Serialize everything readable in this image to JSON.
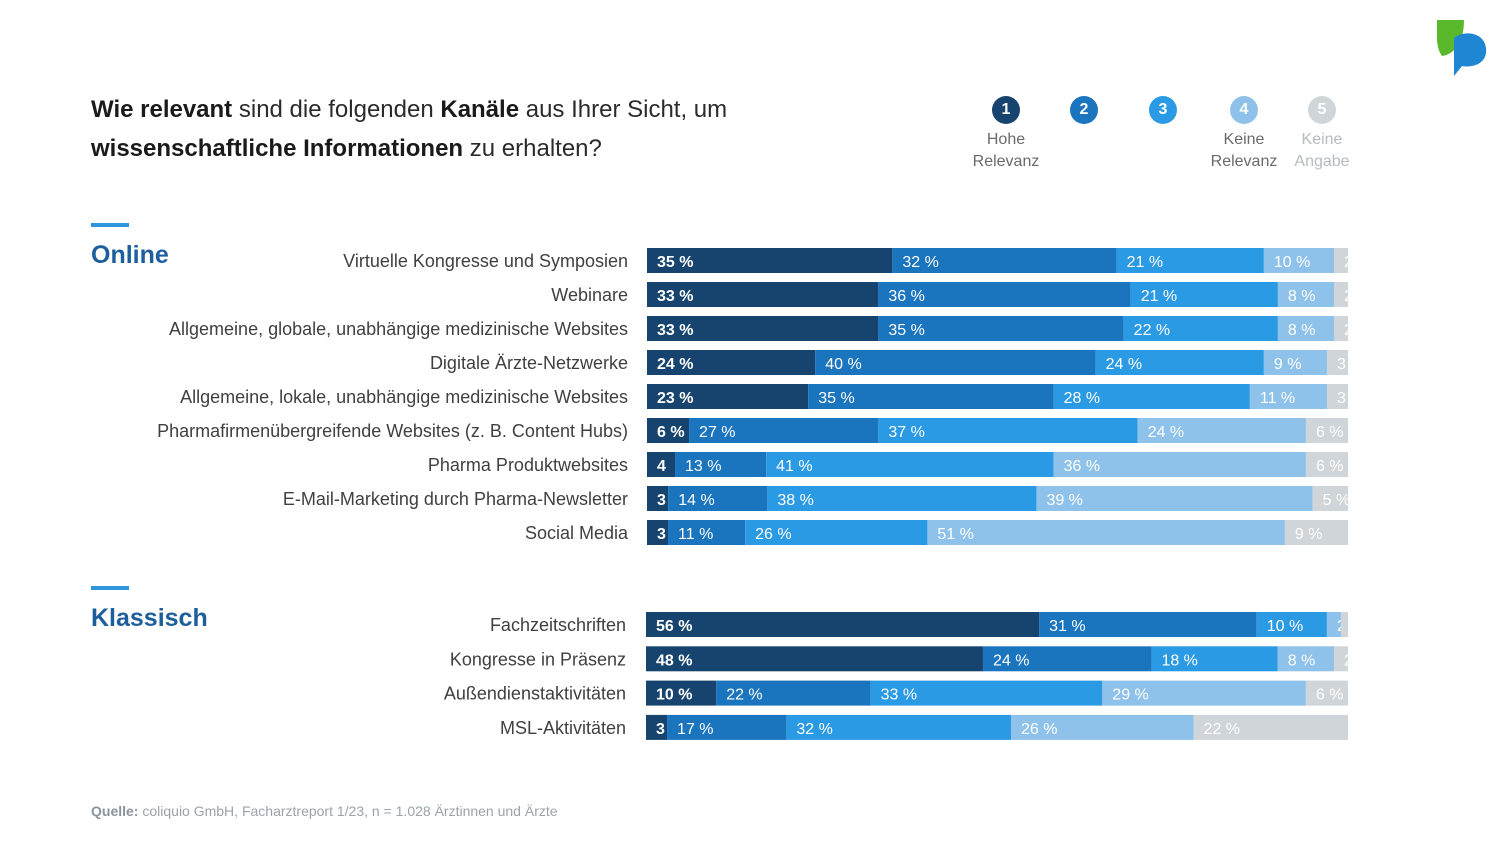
{
  "title": {
    "part1_bold": "Wie relevant",
    "part2": " sind die folgenden ",
    "part3_bold": "Kanäle",
    "part4": " aus Ihrer Sicht, um",
    "part5_bold": "wissenschaftliche Informationen",
    "part6": " zu erhalten?"
  },
  "legend": [
    {
      "num": "1",
      "label1": "Hohe",
      "label2": "Relevanz",
      "color": "#17446e"
    },
    {
      "num": "2",
      "label1": "",
      "label2": "",
      "color": "#1a74be"
    },
    {
      "num": "3",
      "label1": "",
      "label2": "",
      "color": "#2b9ae4"
    },
    {
      "num": "4",
      "label1": "Keine",
      "label2": "Relevanz",
      "color": "#8ec2ea"
    },
    {
      "num": "5",
      "label1": "Keine",
      "label2": "Angabe",
      "color": "#d0d5d9"
    }
  ],
  "sections": {
    "online": "Online",
    "klassisch": "Klassisch"
  },
  "chart_data": {
    "type": "bar",
    "orientation": "horizontal-stacked-100",
    "series_names": [
      "1",
      "2",
      "3",
      "4",
      "5"
    ],
    "colors": [
      "#17446e",
      "#1a74be",
      "#2b9ae4",
      "#8ec2ea",
      "#d0d5d9"
    ],
    "groups": [
      {
        "name": "Online",
        "rows": [
          {
            "category": "Virtuelle Kongresse und Symposien",
            "values": [
              35,
              32,
              21,
              10,
              2
            ],
            "labels": [
              "35 %",
              "32 %",
              "21 %",
              "10 %",
              "2"
            ]
          },
          {
            "category": "Webinare",
            "values": [
              33,
              36,
              21,
              8,
              2
            ],
            "labels": [
              "33 %",
              "36 %",
              "21 %",
              "8 %",
              "2"
            ]
          },
          {
            "category": "Allgemeine, globale, unabhängige medizinische Websites",
            "values": [
              33,
              35,
              22,
              8,
              2
            ],
            "labels": [
              "33 %",
              "35 %",
              "22 %",
              "8 %",
              "2"
            ]
          },
          {
            "category": "Digitale Ärzte-Netzwerke",
            "values": [
              24,
              40,
              24,
              9,
              3
            ],
            "labels": [
              "24 %",
              "40 %",
              "24 %",
              "9 %",
              "3"
            ]
          },
          {
            "category": "Allgemeine, lokale, unabhängige medizinische Websites",
            "values": [
              23,
              35,
              28,
              11,
              3
            ],
            "labels": [
              "23 %",
              "35 %",
              "28 %",
              "11 %",
              "3"
            ]
          },
          {
            "category": "Pharmafirmenübergreifende Websites (z. B. Content Hubs)",
            "values": [
              6,
              27,
              37,
              24,
              6
            ],
            "labels": [
              "6 %",
              "27 %",
              "37 %",
              "24 %",
              "6 %"
            ]
          },
          {
            "category": "Pharma Produktwebsites",
            "values": [
              4,
              13,
              41,
              36,
              6
            ],
            "labels": [
              "4",
              "13 %",
              "41 %",
              "36 %",
              "6 %"
            ]
          },
          {
            "category": "E-Mail-Marketing durch Pharma-Newsletter",
            "values": [
              3,
              14,
              38,
              39,
              5
            ],
            "labels": [
              "3",
              "14 %",
              "38 %",
              "39 %",
              "5 %"
            ]
          },
          {
            "category": "Social Media",
            "values": [
              3,
              11,
              26,
              51,
              9
            ],
            "labels": [
              "3",
              "11 %",
              "26 %",
              "51 %",
              "9 %"
            ]
          }
        ]
      },
      {
        "name": "Klassisch",
        "rows": [
          {
            "category": "Fachzeitschriften",
            "values": [
              56,
              31,
              10,
              2,
              1
            ],
            "labels": [
              "56 %",
              "31 %",
              "10 %",
              "2",
              ""
            ]
          },
          {
            "category": "Kongresse in Präsenz",
            "values": [
              48,
              24,
              18,
              8,
              2
            ],
            "labels": [
              "48 %",
              "24 %",
              "18 %",
              "8 %",
              "2"
            ]
          },
          {
            "category": "Außendienstaktivitäten",
            "values": [
              10,
              22,
              33,
              29,
              6
            ],
            "labels": [
              "10 %",
              "22 %",
              "33 %",
              "29 %",
              "6 %"
            ]
          },
          {
            "category": "MSL-Aktivitäten",
            "values": [
              3,
              17,
              32,
              26,
              22
            ],
            "labels": [
              "3",
              "17 %",
              "32 %",
              "26 %",
              "22 %"
            ]
          }
        ]
      }
    ]
  },
  "source": {
    "label": "Quelle:",
    "text": " coliquio GmbH, Facharztreport 1/23, n = 1.028 Ärztinnen und Ärzte"
  }
}
